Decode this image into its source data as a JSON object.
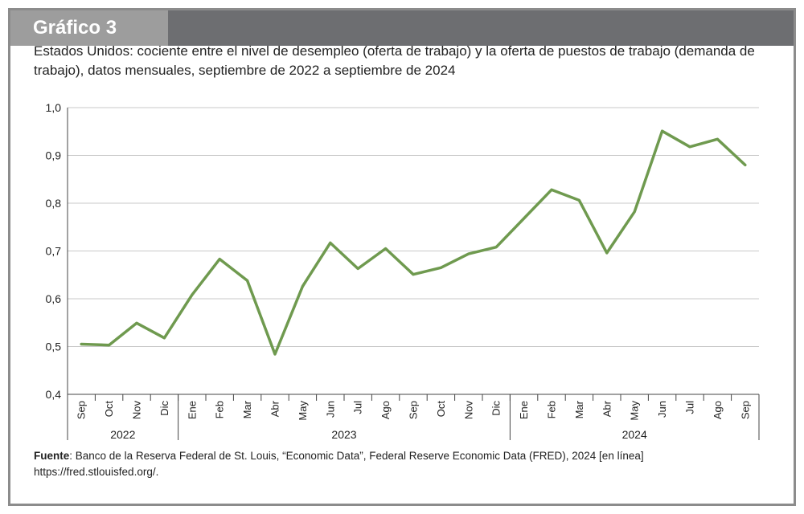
{
  "header": {
    "title": "Gráfico 3",
    "subtitle": "Estados Unidos: cociente entre el nivel de desempleo (oferta de trabajo) y la oferta de puestos de trabajo (demanda de trabajo), datos mensuales, septiembre de 2022 a septiembre de 2024"
  },
  "source": {
    "label": "Fuente",
    "text": ": Banco de la Reserva Federal de St. Louis, “Economic Data”, Federal Reserve Economic Data (FRED), 2024 [en línea] https://fred.stlouisfed.org/."
  },
  "colors": {
    "line": "#6f9a4f",
    "grid": "#c8c8c8",
    "header_bar": "#6d6e71",
    "header_tab": "#9d9d9d"
  },
  "chart_data": {
    "type": "line",
    "title": "",
    "xlabel": "",
    "ylabel": "",
    "ylim": [
      0.4,
      1.0
    ],
    "yticks": [
      "0,4",
      "0,5",
      "0,6",
      "0,7",
      "0,8",
      "0,9",
      "1,0"
    ],
    "grid": true,
    "categories": [
      "Sep",
      "Oct",
      "Nov",
      "Dic",
      "Ene",
      "Feb",
      "Mar",
      "Abr",
      "May",
      "Jun",
      "Jul",
      "Ago",
      "Sep",
      "Oct",
      "Nov",
      "Dic",
      "Ene",
      "Feb",
      "Mar",
      "Abr",
      "May",
      "Jun",
      "Jul",
      "Ago",
      "Sep"
    ],
    "years": [
      {
        "label": "2022",
        "start": 0,
        "end": 3
      },
      {
        "label": "2023",
        "start": 4,
        "end": 15
      },
      {
        "label": "2024",
        "start": 16,
        "end": 24
      }
    ],
    "series": [
      {
        "values": [
          0.505,
          0.503,
          0.549,
          0.518,
          0.608,
          0.683,
          0.638,
          0.484,
          0.626,
          0.717,
          0.663,
          0.705,
          0.651,
          0.665,
          0.694,
          0.708,
          0.768,
          0.828,
          0.806,
          0.696,
          0.782,
          0.951,
          0.918,
          0.934,
          0.88
        ]
      }
    ]
  }
}
